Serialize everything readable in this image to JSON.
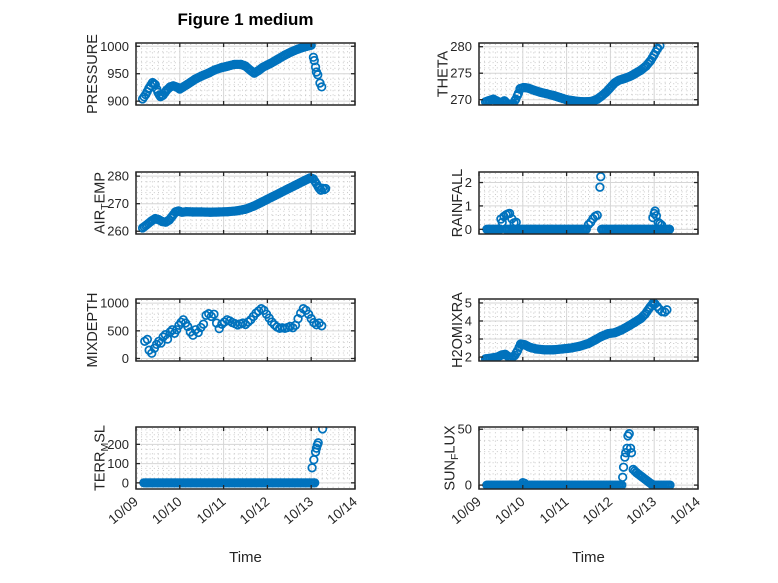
{
  "title": "Figure 1 medium",
  "colors": {
    "marker": "#0072BD",
    "axis": "#262626",
    "grid": "#d6d6d6",
    "minor_grid": "#c8c8c8",
    "text": "#262626",
    "background": "#ffffff"
  },
  "x_axis": {
    "axis_label": "Time",
    "lim": [
      0,
      5
    ],
    "tick_positions": [
      0,
      1,
      2,
      3,
      4,
      5
    ],
    "tick_labels": [
      "10/09",
      "10/10",
      "10/11",
      "10/12",
      "10/13",
      "10/14"
    ]
  },
  "chart_data": [
    {
      "type": "scatter",
      "name": "PRESSURE",
      "ylabel_parts": [
        [
          "PRESSURE",
          0
        ]
      ],
      "ylim": [
        893,
        1006
      ],
      "yticks": [
        900,
        950,
        1000
      ],
      "trend_segments": [
        [
          [
            0.15,
            904
          ],
          [
            0.22,
            912
          ],
          [
            0.3,
            924
          ],
          [
            0.38,
            934
          ],
          [
            0.44,
            930
          ],
          [
            0.5,
            916
          ],
          [
            0.56,
            908
          ],
          [
            0.62,
            911
          ],
          [
            0.7,
            920
          ],
          [
            0.78,
            926
          ],
          [
            0.85,
            928
          ],
          [
            0.95,
            925
          ],
          [
            1.0,
            922
          ],
          [
            1.1,
            927
          ],
          [
            1.2,
            932
          ],
          [
            1.35,
            940
          ],
          [
            1.5,
            946
          ],
          [
            1.65,
            951
          ],
          [
            1.8,
            957
          ],
          [
            1.95,
            961
          ],
          [
            2.1,
            964
          ],
          [
            2.25,
            967
          ],
          [
            2.4,
            967
          ],
          [
            2.5,
            964
          ],
          [
            2.6,
            957
          ],
          [
            2.7,
            951
          ],
          [
            2.8,
            956
          ],
          [
            2.9,
            962
          ],
          [
            3.0,
            966
          ],
          [
            3.1,
            970
          ],
          [
            3.25,
            977
          ],
          [
            3.4,
            984
          ],
          [
            3.55,
            990
          ],
          [
            3.7,
            995
          ],
          [
            3.85,
            999
          ],
          [
            4.0,
            1002
          ]
        ]
      ],
      "points": [
        [
          4.05,
          980
        ],
        [
          4.07,
          974
        ],
        [
          4.1,
          962
        ],
        [
          4.12,
          953
        ],
        [
          4.15,
          948
        ],
        [
          4.2,
          933
        ],
        [
          4.24,
          926
        ]
      ]
    },
    {
      "type": "scatter",
      "name": "THETA",
      "ylabel_parts": [
        [
          "THETA",
          0
        ]
      ],
      "ylim": [
        269.0,
        280.7
      ],
      "yticks": [
        270,
        275,
        280
      ],
      "trend_segments": [
        [
          [
            0.15,
            269.6
          ],
          [
            0.25,
            269.9
          ],
          [
            0.33,
            270.1
          ],
          [
            0.42,
            269.7
          ],
          [
            0.5,
            269.4
          ],
          [
            0.58,
            269.8
          ],
          [
            0.65,
            269.2
          ],
          [
            0.72,
            268.9
          ],
          [
            0.78,
            269.3
          ],
          [
            0.84,
            270.1
          ],
          [
            0.9,
            271.2
          ],
          [
            0.94,
            272.1
          ],
          [
            1.02,
            272.3
          ],
          [
            1.12,
            272.2
          ],
          [
            1.25,
            271.8
          ],
          [
            1.4,
            271.4
          ],
          [
            1.55,
            271.1
          ],
          [
            1.7,
            270.8
          ],
          [
            1.85,
            270.4
          ],
          [
            2.0,
            270.0
          ],
          [
            2.15,
            269.8
          ],
          [
            2.3,
            269.65
          ],
          [
            2.45,
            269.6
          ],
          [
            2.58,
            269.7
          ],
          [
            2.7,
            270.1
          ],
          [
            2.8,
            270.7
          ],
          [
            2.9,
            271.4
          ],
          [
            3.0,
            272.3
          ],
          [
            3.1,
            273.2
          ],
          [
            3.2,
            273.7
          ],
          [
            3.32,
            274.0
          ],
          [
            3.45,
            274.4
          ],
          [
            3.58,
            275.0
          ],
          [
            3.7,
            275.6
          ],
          [
            3.82,
            276.4
          ],
          [
            3.92,
            277.4
          ],
          [
            4.0,
            278.5
          ],
          [
            4.08,
            279.7
          ]
        ]
      ],
      "points": [
        [
          4.13,
          280.2
        ]
      ]
    },
    {
      "type": "scatter",
      "name": "AIR_TEMP",
      "ylabel_parts": [
        [
          "AIR",
          0
        ],
        [
          "T",
          1
        ],
        [
          "EMP",
          0
        ]
      ],
      "ylim": [
        259,
        281.5
      ],
      "yticks": [
        260,
        270,
        280
      ],
      "trend_segments": [
        [
          [
            0.15,
            261.2
          ],
          [
            0.25,
            262.4
          ],
          [
            0.35,
            263.7
          ],
          [
            0.44,
            264.6
          ],
          [
            0.52,
            264.2
          ],
          [
            0.6,
            263.5
          ],
          [
            0.68,
            263.3
          ],
          [
            0.76,
            264.1
          ],
          [
            0.83,
            265.5
          ],
          [
            0.9,
            267.0
          ],
          [
            0.97,
            267.4
          ],
          [
            1.05,
            266.9
          ],
          [
            1.15,
            267.1
          ],
          [
            1.3,
            267.0
          ],
          [
            1.5,
            267.0
          ],
          [
            1.7,
            266.9
          ],
          [
            1.9,
            267.0
          ],
          [
            2.1,
            267.1
          ],
          [
            2.3,
            267.4
          ],
          [
            2.5,
            268.0
          ],
          [
            2.7,
            269.2
          ],
          [
            2.9,
            270.8
          ],
          [
            3.1,
            272.4
          ],
          [
            3.3,
            274.0
          ],
          [
            3.5,
            275.6
          ],
          [
            3.7,
            277.2
          ],
          [
            3.85,
            278.4
          ],
          [
            3.98,
            279.4
          ],
          [
            4.05,
            279.0
          ],
          [
            4.12,
            277.2
          ],
          [
            4.18,
            275.6
          ],
          [
            4.22,
            274.9
          ]
        ]
      ],
      "points": [
        [
          4.26,
          275.6
        ],
        [
          4.3,
          275.1
        ],
        [
          4.33,
          275.5
        ]
      ]
    },
    {
      "type": "scatter",
      "name": "RAINFALL",
      "ylabel_parts": [
        [
          "RAINFALL",
          0
        ]
      ],
      "ylim": [
        -0.2,
        2.45
      ],
      "yticks": [
        0,
        1,
        2
      ],
      "trend_segments": [
        [
          [
            0.18,
            0
          ],
          [
            0.48,
            0
          ]
        ],
        [
          [
            0.62,
            0
          ],
          [
            2.45,
            0
          ]
        ],
        [
          [
            2.8,
            0
          ],
          [
            4.35,
            0
          ]
        ]
      ],
      "points": [
        [
          0.5,
          0.44
        ],
        [
          0.53,
          0.3
        ],
        [
          0.57,
          0.55
        ],
        [
          0.62,
          0.62
        ],
        [
          0.66,
          0.66
        ],
        [
          0.7,
          0.68
        ],
        [
          0.75,
          0.45
        ],
        [
          0.8,
          0.28
        ],
        [
          0.85,
          0.3
        ],
        [
          2.5,
          0.2
        ],
        [
          2.55,
          0.3
        ],
        [
          2.6,
          0.45
        ],
        [
          2.65,
          0.55
        ],
        [
          2.7,
          0.6
        ],
        [
          2.76,
          1.8
        ],
        [
          2.78,
          2.25
        ],
        [
          3.97,
          0.5
        ],
        [
          4.0,
          0.68
        ],
        [
          4.02,
          0.78
        ],
        [
          4.05,
          0.58
        ],
        [
          4.09,
          0.3
        ],
        [
          4.13,
          0.24
        ],
        [
          4.17,
          0.18
        ]
      ]
    },
    {
      "type": "scatter",
      "name": "MIXDEPTH",
      "ylabel_parts": [
        [
          "MIXDEPTH",
          0
        ]
      ],
      "ylim": [
        -45,
        1075
      ],
      "yticks": [
        0,
        500,
        1000
      ],
      "trend_segments": [],
      "points": [
        [
          0.2,
          310
        ],
        [
          0.26,
          345
        ],
        [
          0.3,
          150
        ],
        [
          0.36,
          95
        ],
        [
          0.42,
          185
        ],
        [
          0.47,
          255
        ],
        [
          0.52,
          310
        ],
        [
          0.57,
          280
        ],
        [
          0.62,
          390
        ],
        [
          0.67,
          430
        ],
        [
          0.72,
          350
        ],
        [
          0.78,
          480
        ],
        [
          0.83,
          520
        ],
        [
          0.88,
          455
        ],
        [
          0.93,
          520
        ],
        [
          0.98,
          600
        ],
        [
          1.03,
          655
        ],
        [
          1.08,
          700
        ],
        [
          1.13,
          640
        ],
        [
          1.18,
          580
        ],
        [
          1.24,
          480
        ],
        [
          1.3,
          420
        ],
        [
          1.36,
          520
        ],
        [
          1.42,
          470
        ],
        [
          1.48,
          560
        ],
        [
          1.54,
          620
        ],
        [
          1.6,
          780
        ],
        [
          1.66,
          810
        ],
        [
          1.72,
          760
        ],
        [
          1.78,
          800
        ],
        [
          1.84,
          640
        ],
        [
          1.9,
          540
        ],
        [
          1.96,
          620
        ],
        [
          2.02,
          660
        ],
        [
          2.08,
          700
        ],
        [
          2.14,
          680
        ],
        [
          2.2,
          650
        ],
        [
          2.26,
          630
        ],
        [
          2.32,
          605
        ],
        [
          2.38,
          625
        ],
        [
          2.44,
          640
        ],
        [
          2.5,
          615
        ],
        [
          2.56,
          660
        ],
        [
          2.62,
          700
        ],
        [
          2.68,
          760
        ],
        [
          2.74,
          820
        ],
        [
          2.8,
          860
        ],
        [
          2.86,
          900
        ],
        [
          2.92,
          870
        ],
        [
          2.98,
          800
        ],
        [
          3.04,
          730
        ],
        [
          3.1,
          660
        ],
        [
          3.16,
          610
        ],
        [
          3.22,
          570
        ],
        [
          3.28,
          545
        ],
        [
          3.34,
          555
        ],
        [
          3.4,
          545
        ],
        [
          3.46,
          560
        ],
        [
          3.52,
          580
        ],
        [
          3.58,
          555
        ],
        [
          3.64,
          600
        ],
        [
          3.7,
          720
        ],
        [
          3.76,
          820
        ],
        [
          3.82,
          900
        ],
        [
          3.88,
          870
        ],
        [
          3.94,
          800
        ],
        [
          4.0,
          720
        ],
        [
          4.06,
          650
        ],
        [
          4.12,
          610
        ],
        [
          4.18,
          640
        ],
        [
          4.24,
          590
        ]
      ]
    },
    {
      "type": "scatter",
      "name": "H2OMIXRA",
      "ylabel_parts": [
        [
          "H2OMIXRA",
          0
        ]
      ],
      "ylim": [
        1.78,
        5.22
      ],
      "yticks": [
        2,
        3,
        4,
        5
      ],
      "trend_segments": [
        [
          [
            0.15,
            1.9
          ],
          [
            0.3,
            1.95
          ],
          [
            0.42,
            2.0
          ],
          [
            0.52,
            2.12
          ],
          [
            0.6,
            2.15
          ],
          [
            0.68,
            2.0
          ],
          [
            0.75,
            1.97
          ],
          [
            0.82,
            2.1
          ],
          [
            0.88,
            2.35
          ],
          [
            0.95,
            2.72
          ],
          [
            1.05,
            2.68
          ],
          [
            1.15,
            2.55
          ],
          [
            1.3,
            2.45
          ],
          [
            1.5,
            2.4
          ],
          [
            1.7,
            2.4
          ],
          [
            1.9,
            2.45
          ],
          [
            2.1,
            2.5
          ],
          [
            2.3,
            2.6
          ],
          [
            2.5,
            2.75
          ],
          [
            2.65,
            2.95
          ],
          [
            2.8,
            3.15
          ],
          [
            2.95,
            3.3
          ],
          [
            3.1,
            3.35
          ],
          [
            3.25,
            3.5
          ],
          [
            3.4,
            3.7
          ],
          [
            3.55,
            3.92
          ],
          [
            3.7,
            4.15
          ],
          [
            3.8,
            4.4
          ],
          [
            3.9,
            4.75
          ],
          [
            3.98,
            5.0
          ],
          [
            4.02,
            4.95
          ]
        ]
      ],
      "points": [
        [
          4.07,
          4.8
        ],
        [
          4.12,
          4.65
        ],
        [
          4.18,
          4.52
        ],
        [
          4.24,
          4.5
        ],
        [
          4.29,
          4.62
        ]
      ]
    },
    {
      "type": "scatter",
      "name": "TERR_MSL",
      "ylabel_parts": [
        [
          "TERR",
          0
        ],
        [
          "M",
          1
        ],
        [
          "SL",
          0
        ]
      ],
      "ylim": [
        -32,
        290
      ],
      "yticks": [
        0,
        100,
        200
      ],
      "trend_segments": [
        [
          [
            0.18,
            0
          ],
          [
            4.08,
            0
          ]
        ]
      ],
      "points": [
        [
          4.02,
          78
        ],
        [
          4.06,
          120
        ],
        [
          4.1,
          160
        ],
        [
          4.12,
          180
        ],
        [
          4.14,
          196
        ],
        [
          4.16,
          208
        ],
        [
          4.26,
          280
        ]
      ]
    },
    {
      "type": "scatter",
      "name": "SUN_FLUX",
      "ylabel_parts": [
        [
          "SUN",
          0
        ],
        [
          "F",
          1
        ],
        [
          "LUX",
          0
        ]
      ],
      "ylim": [
        -3.5,
        52
      ],
      "yticks": [
        0,
        50
      ],
      "trend_segments": [
        [
          [
            0.18,
            0
          ],
          [
            3.26,
            0
          ]
        ],
        [
          [
            3.52,
            14
          ],
          [
            3.6,
            11
          ],
          [
            3.7,
            8
          ],
          [
            3.8,
            5
          ],
          [
            3.9,
            2
          ],
          [
            3.98,
            0
          ]
        ],
        [
          [
            3.96,
            0
          ],
          [
            4.36,
            0
          ]
        ]
      ],
      "points": [
        [
          1.0,
          2.2
        ],
        [
          1.04,
          1.6
        ],
        [
          3.28,
          7
        ],
        [
          3.3,
          16
        ],
        [
          3.33,
          25
        ],
        [
          3.35,
          29
        ],
        [
          3.38,
          33
        ],
        [
          3.4,
          44
        ],
        [
          3.43,
          46
        ],
        [
          3.46,
          33
        ],
        [
          3.48,
          29
        ]
      ]
    }
  ]
}
